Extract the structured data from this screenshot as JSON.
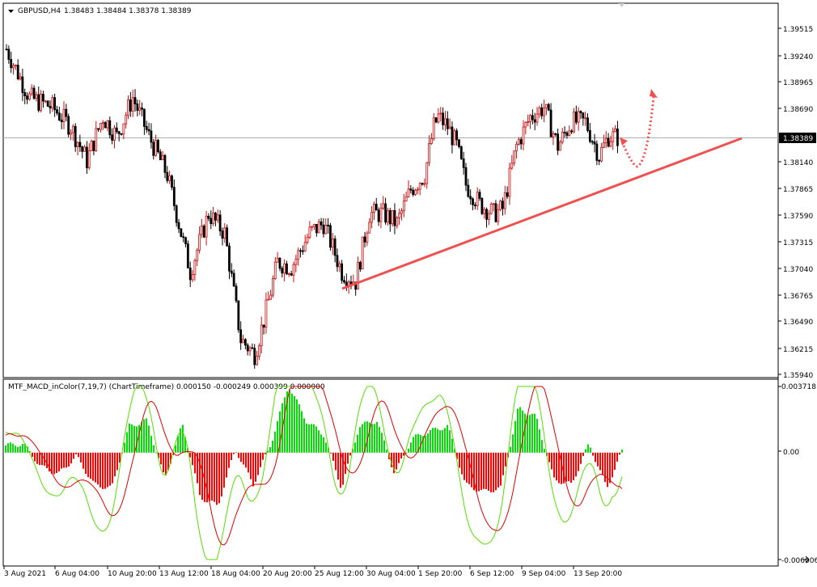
{
  "main_header": {
    "symbol_tf": "GBPUSD,H4",
    "ohlc": "1.38483 1.38484 1.38378 1.38389"
  },
  "price_axis": {
    "ticks": [
      "1.39515",
      "1.39240",
      "1.38965",
      "1.38690",
      "1.38140",
      "1.37865",
      "1.37590",
      "1.37315",
      "1.37040",
      "1.36765",
      "1.36490",
      "1.36215",
      "1.35940"
    ],
    "current_price": "1.38389"
  },
  "indicator": {
    "header": "MTF_MACD_inColor(7,19,7) (ChartTimeframe) 0.000150 -0.000249 0.000399 0.000000",
    "axis_ticks": [
      "0.003718",
      "0.00",
      "-0.006006"
    ]
  },
  "time_axis": {
    "labels": [
      "3 Aug 2021",
      "6 Aug 04:00",
      "10 Aug 20:00",
      "13 Aug 12:00",
      "18 Aug 04:00",
      "20 Aug 20:00",
      "25 Aug 12:00",
      "30 Aug 04:00",
      "1 Sep 20:00",
      "6 Sep 12:00",
      "9 Sep 04:00",
      "13 Sep 20:00"
    ]
  },
  "colors": {
    "bull": "#cc1010",
    "bear": "#000000",
    "trendline": "#f05050",
    "hist_up": "#00e000",
    "hist_down": "#ff0000",
    "macd_line": "#55dd00",
    "signal_line": "#dd0000",
    "price_line": "#b0b0b0"
  },
  "chart_data": [
    {
      "type": "candlestick",
      "symbol": "GBPUSD",
      "timeframe": "H4",
      "ylim": [
        1.3594,
        1.3964
      ],
      "series": [
        {
          "name": "GBPUSD close",
          "x_index": [
            0,
            10,
            20,
            28,
            35,
            42,
            48,
            55,
            62,
            70,
            80,
            88,
            95,
            102,
            108,
            112,
            118,
            124,
            132,
            138,
            146,
            152,
            158,
            164,
            170,
            176,
            182,
            186,
            188,
            192,
            196,
            200,
            206,
            212,
            216,
            222,
            228,
            234,
            240,
            246,
            252,
            258,
            262,
            266
          ],
          "values": [
            1.393,
            1.388,
            1.387,
            1.385,
            1.3815,
            1.386,
            1.384,
            1.388,
            1.384,
            1.38,
            1.37,
            1.376,
            1.374,
            1.363,
            1.3615,
            1.365,
            1.371,
            1.3705,
            1.374,
            1.375,
            1.37,
            1.369,
            1.376,
            1.376,
            1.375,
            1.3785,
            1.38,
            1.385,
            1.386,
            1.385,
            1.383,
            1.379,
            1.377,
            1.376,
            1.3765,
            1.383,
            1.386,
            1.387,
            1.383,
            1.3855,
            1.3855,
            1.382,
            1.384,
            1.3839
          ]
        }
      ]
    },
    {
      "type": "bar",
      "title": "",
      "ylim": [
        -0.006006,
        0.003718
      ],
      "note_series": [
        {
          "name": "histogram",
          "values": [
            0.0004,
            0.0005,
            -0.0008,
            -0.0012,
            -0.0002,
            -0.0018,
            -0.002,
            0.0015,
            0.0018,
            -0.0015,
            0.0016,
            -0.0025,
            -0.003,
            0.0002,
            -0.0018,
            0.0005,
            0.0038,
            0.0018,
            0.001,
            -0.002,
            0.0015,
            0.0018,
            -0.0012,
            0.0008,
            0.0012,
            0.0015,
            -0.0018,
            -0.0022,
            -0.002,
            0.0025,
            0.002,
            -0.0015,
            -0.0018,
            0.0005,
            -0.002,
            0.0004
          ]
        }
      ]
    }
  ]
}
